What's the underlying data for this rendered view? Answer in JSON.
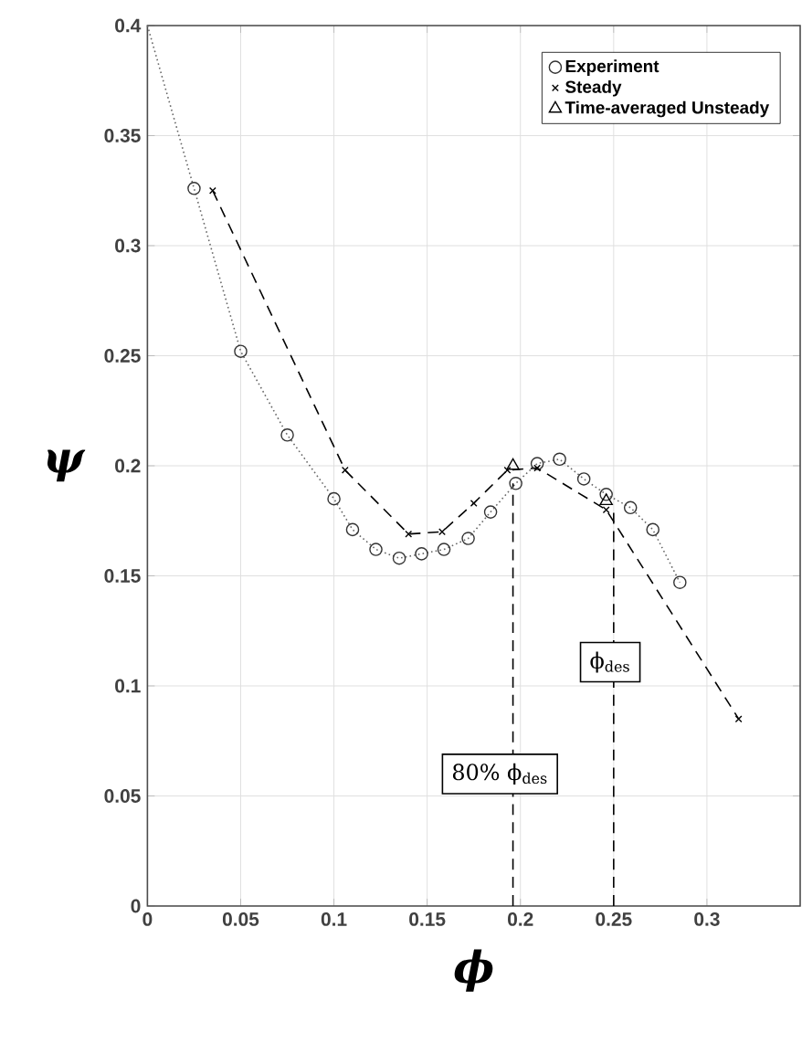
{
  "chart_data": {
    "type": "scatter",
    "xlabel": "ϕ",
    "ylabel": "ψ",
    "xlim": [
      0,
      0.35
    ],
    "ylim": [
      0,
      0.4
    ],
    "xticks": [
      0,
      0.05,
      0.1,
      0.15,
      0.2,
      0.25,
      0.3
    ],
    "yticks": [
      0,
      0.05,
      0.1,
      0.15,
      0.2,
      0.25,
      0.3,
      0.35,
      0.4
    ],
    "grid": true,
    "legend": "top right",
    "series": [
      {
        "type": "line",
        "line_style": "dotted",
        "marker": "none",
        "color": "#666666",
        "x": [
          0,
          0.025,
          0.05,
          0.075,
          0.1,
          0.11,
          0.1225,
          0.135,
          0.147,
          0.159,
          0.172,
          0.184,
          0.1975,
          0.209,
          0.221,
          0.234,
          0.246,
          0.259,
          0.271,
          0.2855
        ],
        "values": [
          0.4,
          0.326,
          0.252,
          0.214,
          0.185,
          0.171,
          0.162,
          0.158,
          0.16,
          0.162,
          0.167,
          0.179,
          0.192,
          0.201,
          0.203,
          0.194,
          0.187,
          0.181,
          0.171,
          0.147
        ]
      },
      {
        "type": "line",
        "line_style": "dashed",
        "marker": "none",
        "color": "#000000",
        "x": [
          0.196,
          0.196
        ],
        "values": [
          0,
          0.192
        ]
      },
      {
        "type": "line",
        "line_style": "dashed",
        "marker": "none",
        "color": "#000000",
        "x": [
          0.25,
          0.25
        ],
        "values": [
          0,
          0.18
        ]
      },
      {
        "name": "Experiment",
        "marker": "circle",
        "color": "#333333",
        "x": [
          0.025,
          0.05,
          0.075,
          0.1,
          0.11,
          0.1225,
          0.135,
          0.147,
          0.159,
          0.172,
          0.184,
          0.1975,
          0.209,
          0.221,
          0.234,
          0.246,
          0.259,
          0.271,
          0.2855
        ],
        "values": [
          0.326,
          0.252,
          0.214,
          0.185,
          0.171,
          0.162,
          0.158,
          0.16,
          0.162,
          0.167,
          0.179,
          0.192,
          0.201,
          0.203,
          0.194,
          0.187,
          0.181,
          0.171,
          0.147
        ]
      },
      {
        "name": "Steady",
        "type": "line",
        "line_style": "dashed",
        "marker": "cross",
        "color": "#000000",
        "x": [
          0.035,
          0.106,
          0.14,
          0.158,
          0.175,
          0.193,
          0.209,
          0.246,
          0.317
        ],
        "values": [
          0.325,
          0.198,
          0.169,
          0.17,
          0.183,
          0.198,
          0.199,
          0.18,
          0.085
        ]
      },
      {
        "name": "Time-averaged Unsteady",
        "marker": "triangle",
        "color": "#000000",
        "x": [
          0.196,
          0.246
        ],
        "values": [
          0.2,
          0.184
        ]
      }
    ],
    "annotations": [
      "ϕ$_{des}$",
      "80% ϕ$_{des}$"
    ]
  }
}
